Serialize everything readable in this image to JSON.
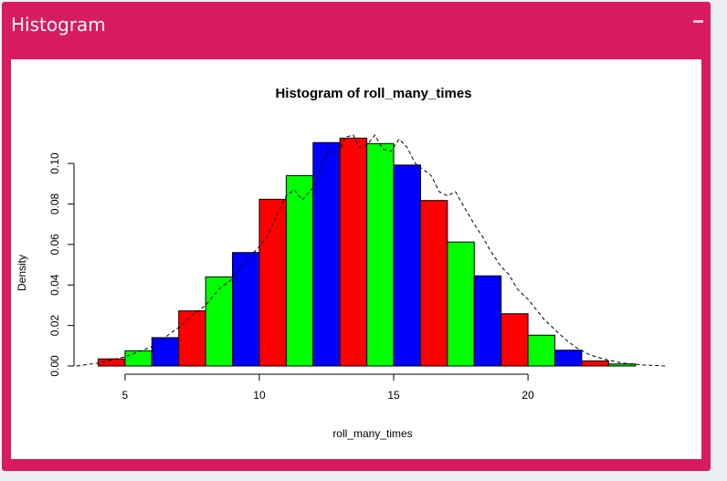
{
  "box": {
    "title": "Histogram"
  },
  "chart_data": {
    "type": "bar",
    "title": "Histogram of roll_many_times",
    "xlabel": "roll_many_times",
    "ylabel": "Density",
    "xlim": [
      3.1,
      25.3
    ],
    "ylim": [
      0,
      0.114
    ],
    "x_ticks": [
      5,
      10,
      15,
      20
    ],
    "y_ticks": [
      "0.00",
      "0.02",
      "0.04",
      "0.06",
      "0.08",
      "0.10"
    ],
    "bin_width": 1,
    "bins": [
      {
        "x0": 4,
        "x1": 5,
        "density": 0.0035,
        "color": "#ff0000"
      },
      {
        "x0": 5,
        "x1": 6,
        "density": 0.0075,
        "color": "#00ff00"
      },
      {
        "x0": 6,
        "x1": 7,
        "density": 0.014,
        "color": "#0000ff"
      },
      {
        "x0": 7,
        "x1": 8,
        "density": 0.0272,
        "color": "#ff0000"
      },
      {
        "x0": 8,
        "x1": 9,
        "density": 0.044,
        "color": "#00ff00"
      },
      {
        "x0": 9,
        "x1": 10,
        "density": 0.056,
        "color": "#0000ff"
      },
      {
        "x0": 10,
        "x1": 11,
        "density": 0.0823,
        "color": "#ff0000"
      },
      {
        "x0": 11,
        "x1": 12,
        "density": 0.094,
        "color": "#00ff00"
      },
      {
        "x0": 12,
        "x1": 13,
        "density": 0.1103,
        "color": "#0000ff"
      },
      {
        "x0": 13,
        "x1": 14,
        "density": 0.1125,
        "color": "#ff0000"
      },
      {
        "x0": 14,
        "x1": 15,
        "density": 0.1098,
        "color": "#00ff00"
      },
      {
        "x0": 15,
        "x1": 16,
        "density": 0.0992,
        "color": "#0000ff"
      },
      {
        "x0": 16,
        "x1": 17,
        "density": 0.0817,
        "color": "#ff0000"
      },
      {
        "x0": 17,
        "x1": 18,
        "density": 0.0612,
        "color": "#00ff00"
      },
      {
        "x0": 18,
        "x1": 19,
        "density": 0.0445,
        "color": "#0000ff"
      },
      {
        "x0": 19,
        "x1": 20,
        "density": 0.0258,
        "color": "#ff0000"
      },
      {
        "x0": 20,
        "x1": 21,
        "density": 0.0152,
        "color": "#00ff00"
      },
      {
        "x0": 21,
        "x1": 22,
        "density": 0.0078,
        "color": "#0000ff"
      },
      {
        "x0": 22,
        "x1": 23,
        "density": 0.0025,
        "color": "#ff0000"
      },
      {
        "x0": 23,
        "x1": 24,
        "density": 0.001,
        "color": "#00ff00"
      }
    ],
    "density_curve": {
      "style": "dashed",
      "color": "#000000",
      "points": [
        [
          3.2,
          0.0
        ],
        [
          4.0,
          0.0015
        ],
        [
          5.0,
          0.0045
        ],
        [
          6.0,
          0.0095
        ],
        [
          7.0,
          0.019
        ],
        [
          7.5,
          0.025
        ],
        [
          8.0,
          0.03
        ],
        [
          8.5,
          0.038
        ],
        [
          9.0,
          0.043
        ],
        [
          9.5,
          0.052
        ],
        [
          10.0,
          0.059
        ],
        [
          10.3,
          0.064
        ],
        [
          10.6,
          0.073
        ],
        [
          11.0,
          0.084
        ],
        [
          11.3,
          0.087
        ],
        [
          11.6,
          0.082
        ],
        [
          12.0,
          0.088
        ],
        [
          12.3,
          0.098
        ],
        [
          12.6,
          0.107
        ],
        [
          12.9,
          0.104
        ],
        [
          13.2,
          0.113
        ],
        [
          13.5,
          0.114
        ],
        [
          13.7,
          0.108
        ],
        [
          14.0,
          0.109
        ],
        [
          14.3,
          0.114
        ],
        [
          14.6,
          0.107
        ],
        [
          14.9,
          0.106
        ],
        [
          15.2,
          0.112
        ],
        [
          15.5,
          0.108
        ],
        [
          15.8,
          0.1
        ],
        [
          16.1,
          0.097
        ],
        [
          16.4,
          0.094
        ],
        [
          16.7,
          0.086
        ],
        [
          17.0,
          0.084
        ],
        [
          17.3,
          0.086
        ],
        [
          17.6,
          0.079
        ],
        [
          18.0,
          0.07
        ],
        [
          18.3,
          0.064
        ],
        [
          18.6,
          0.057
        ],
        [
          19.0,
          0.049
        ],
        [
          19.3,
          0.045
        ],
        [
          19.6,
          0.038
        ],
        [
          20.0,
          0.033
        ],
        [
          20.3,
          0.028
        ],
        [
          20.6,
          0.023
        ],
        [
          21.0,
          0.018
        ],
        [
          21.4,
          0.013
        ],
        [
          21.8,
          0.009
        ],
        [
          22.3,
          0.0055
        ],
        [
          22.8,
          0.0035
        ],
        [
          23.5,
          0.0015
        ],
        [
          24.3,
          0.0005
        ],
        [
          25.1,
          0.0
        ]
      ]
    },
    "grid": false,
    "legend": "none"
  }
}
